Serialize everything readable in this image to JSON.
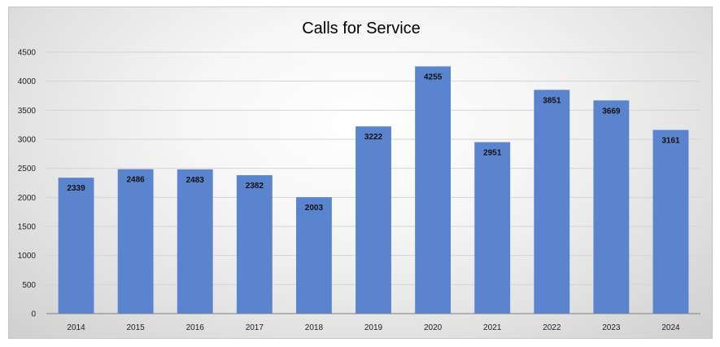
{
  "chart_data": {
    "type": "bar",
    "title": "Calls for Service",
    "xlabel": "",
    "ylabel": "",
    "categories": [
      "2014",
      "2015",
      "2016",
      "2017",
      "2018",
      "2019",
      "2020",
      "2021",
      "2022",
      "2023",
      "2024"
    ],
    "values": [
      2339,
      2486,
      2483,
      2382,
      2003,
      3222,
      4255,
      2951,
      3851,
      3669,
      3161
    ],
    "ylim": [
      0,
      4500
    ],
    "yticks": [
      "0",
      "500",
      "1000",
      "1500",
      "2000",
      "2500",
      "3000",
      "3500",
      "4000",
      "4500"
    ],
    "grid": true,
    "legend": "none",
    "bar_color": "#5b84cf",
    "data_labels": "inside-top"
  }
}
